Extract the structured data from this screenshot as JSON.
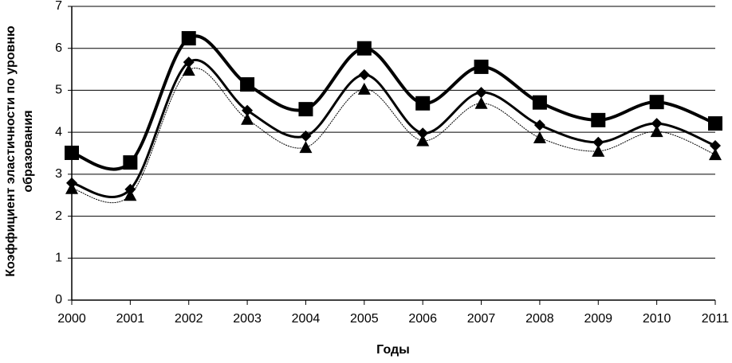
{
  "chart_data": {
    "type": "line",
    "ylabel": [
      "Коэффициент эластичности по уровню",
      "образования"
    ],
    "xlabel": "Годы",
    "categories": [
      "2000",
      "2001",
      "2002",
      "2003",
      "2004",
      "2005",
      "2006",
      "2007",
      "2008",
      "2009",
      "2010",
      "2011"
    ],
    "series": [
      {
        "color": "#000000",
        "marker": "square",
        "values": [
          3.51,
          3.28,
          6.24,
          5.14,
          4.55,
          6.0,
          4.69,
          5.56,
          4.71,
          4.29,
          4.72,
          4.21
        ]
      },
      {
        "color": "#000000",
        "marker": "diamond",
        "values": [
          2.79,
          2.64,
          5.67,
          4.52,
          3.91,
          5.37,
          3.98,
          4.95,
          4.17,
          3.76,
          4.21,
          3.68
        ]
      },
      {
        "color": "#000000",
        "marker": "triangle",
        "values": [
          2.66,
          2.5,
          5.48,
          4.31,
          3.64,
          5.03,
          3.8,
          4.69,
          3.87,
          3.55,
          4.02,
          3.47
        ]
      }
    ],
    "ylim": [
      0,
      7
    ],
    "yticks": [
      0,
      1,
      2,
      3,
      4,
      5,
      6,
      7
    ],
    "grid": true,
    "smooth": true
  }
}
